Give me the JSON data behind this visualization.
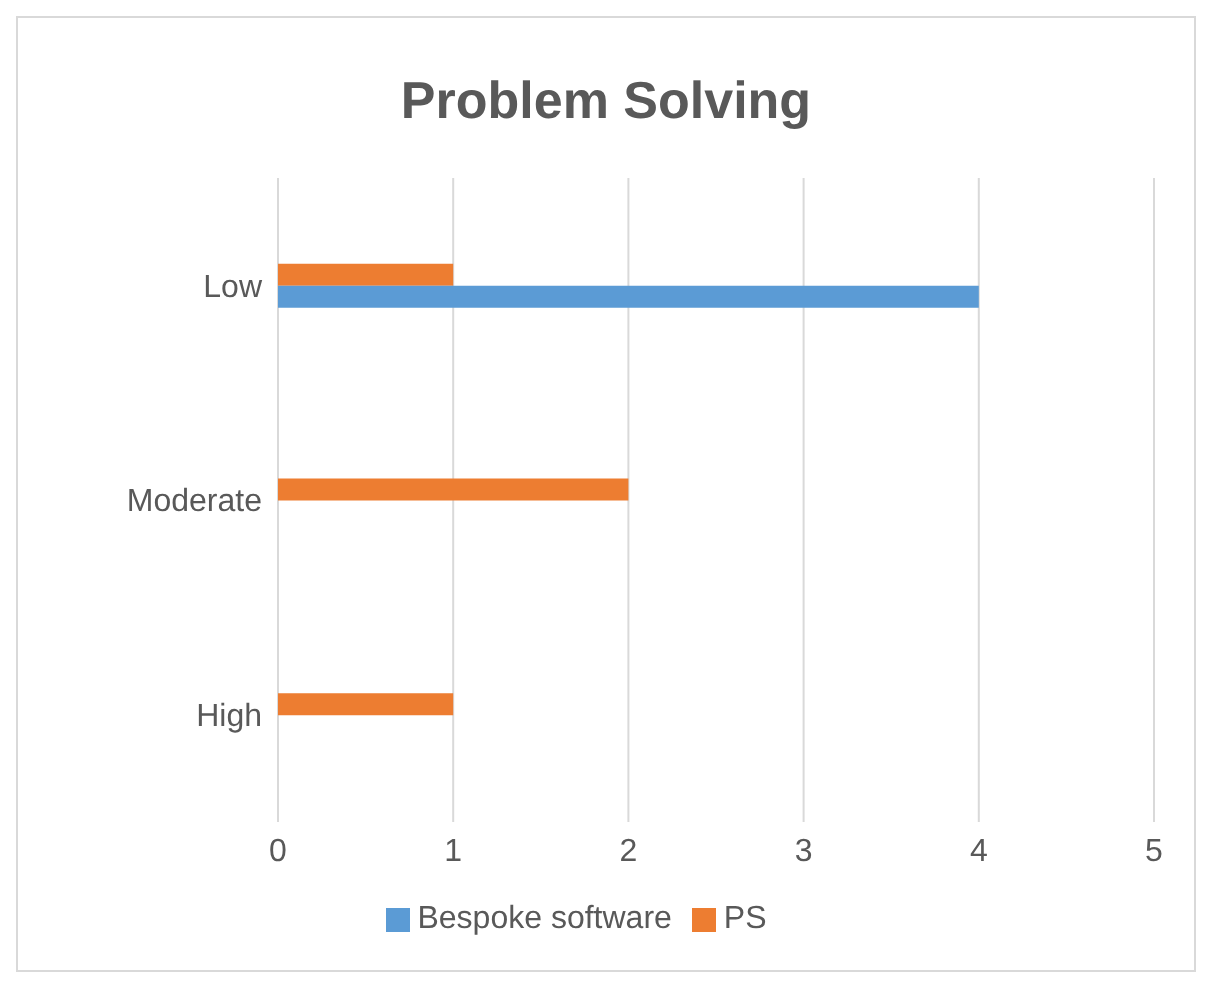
{
  "chart_data": {
    "type": "bar",
    "orientation": "horizontal",
    "title": "Problem Solving",
    "categories": [
      "Low",
      "Moderate",
      "High"
    ],
    "series": [
      {
        "name": "PS",
        "color": "#ed7d31",
        "values": [
          1,
          2,
          1
        ]
      },
      {
        "name": "Bespoke software",
        "color": "#5b9bd5",
        "values": [
          4,
          null,
          null
        ]
      }
    ],
    "xlim": [
      0,
      5
    ],
    "xticks": [
      0,
      1,
      2,
      3,
      4,
      5
    ],
    "grid": "x",
    "legend": "bottom"
  }
}
